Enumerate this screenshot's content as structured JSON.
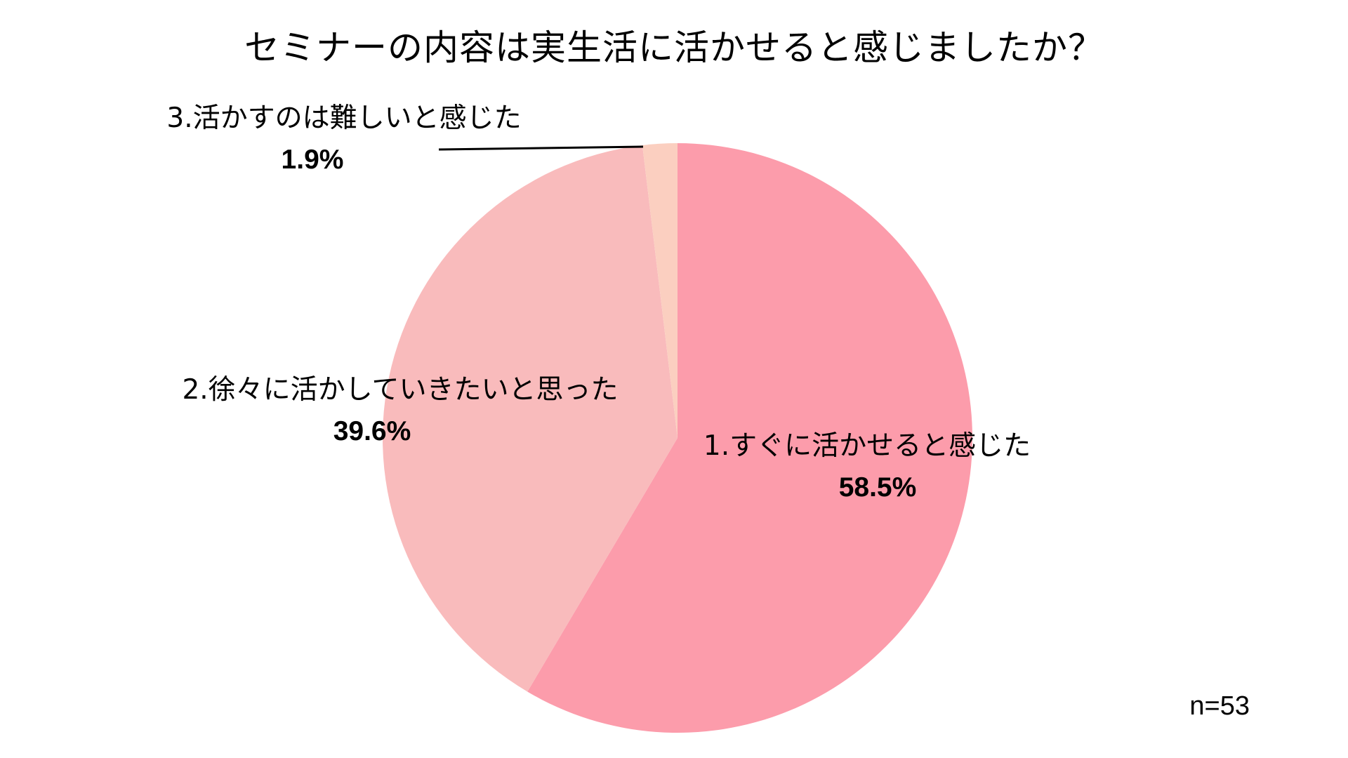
{
  "chart_data": {
    "type": "pie",
    "title": "セミナーの内容は実生活に活かせると感じましたか？",
    "categories": [
      "1.すぐに活かせると感じた",
      "2.徐々に活かしていきたいと思った",
      "3.活かすのは難しいと感じた"
    ],
    "values": [
      58.5,
      39.6,
      1.9
    ],
    "value_labels": [
      "58.5%",
      "39.6%",
      "1.9%"
    ],
    "colors": [
      "#fc9cab",
      "#f9bbbc",
      "#fbcfc0"
    ],
    "start_angle_deg": 0,
    "direction": "clockwise",
    "legend": "none",
    "annotation": "n=53"
  }
}
